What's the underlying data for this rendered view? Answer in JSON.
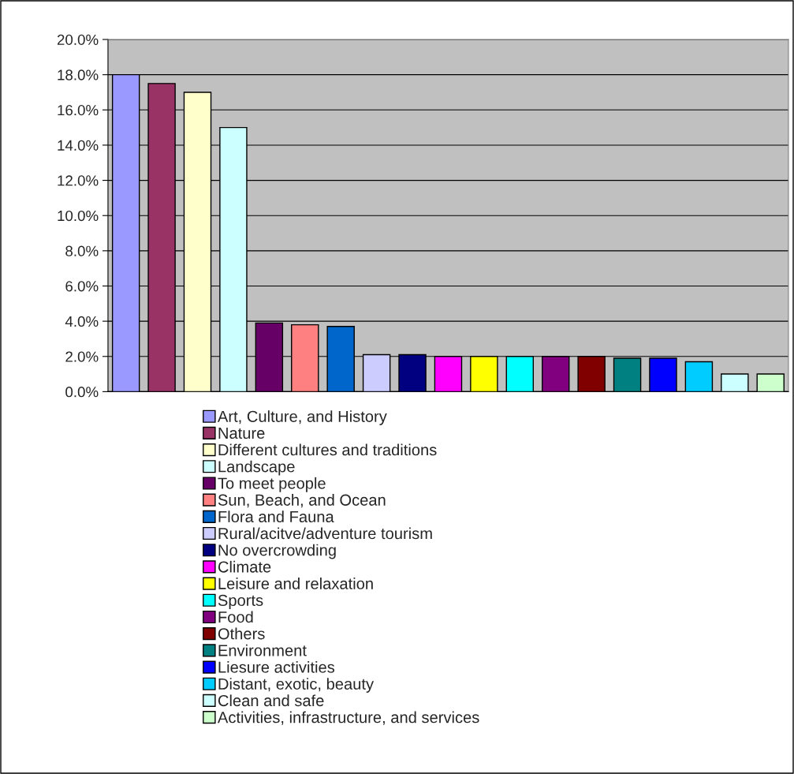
{
  "chart_data": {
    "type": "bar",
    "categories": [
      null
    ],
    "series": [
      {
        "name": "Art, Culture, and History",
        "color": "#9999ff",
        "values": [
          18.0
        ]
      },
      {
        "name": "Nature",
        "color": "#993366",
        "values": [
          17.5
        ]
      },
      {
        "name": "Different cultures and traditions",
        "color": "#ffffcc",
        "values": [
          17.0
        ]
      },
      {
        "name": "Landscape",
        "color": "#ccffff",
        "values": [
          15.0
        ]
      },
      {
        "name": "To meet people",
        "color": "#660066",
        "values": [
          3.9
        ]
      },
      {
        "name": "Sun, Beach, and Ocean",
        "color": "#ff8080",
        "values": [
          3.8
        ]
      },
      {
        "name": "Flora and Fauna",
        "color": "#0066cc",
        "values": [
          3.7
        ]
      },
      {
        "name": "Rural/acitve/adventure tourism",
        "color": "#ccccff",
        "values": [
          2.1
        ]
      },
      {
        "name": "No overcrowding",
        "color": "#000080",
        "values": [
          2.1
        ]
      },
      {
        "name": "Climate",
        "color": "#ff00ff",
        "values": [
          2.0
        ]
      },
      {
        "name": "Leisure and relaxation",
        "color": "#ffff00",
        "values": [
          2.0
        ]
      },
      {
        "name": "Sports",
        "color": "#00ffff",
        "values": [
          2.0
        ]
      },
      {
        "name": "Food",
        "color": "#800080",
        "values": [
          2.0
        ]
      },
      {
        "name": "Others",
        "color": "#800000",
        "values": [
          2.0
        ]
      },
      {
        "name": "Environment",
        "color": "#008080",
        "values": [
          1.9
        ]
      },
      {
        "name": "Liesure activities",
        "color": "#0000ff",
        "values": [
          1.9
        ]
      },
      {
        "name": "Distant, exotic, beauty",
        "color": "#00ccff",
        "values": [
          1.7
        ]
      },
      {
        "name": "Clean and safe",
        "color": "#ccffff",
        "values": [
          1.0
        ]
      },
      {
        "name": "Activities, infrastructure, and services",
        "color": "#ccffcc",
        "values": [
          1.0
        ]
      }
    ],
    "ylim": [
      0,
      20
    ],
    "yticks": [
      {
        "value": 0,
        "label": "0.0%"
      },
      {
        "value": 2,
        "label": "2.0%"
      },
      {
        "value": 4,
        "label": "4.0%"
      },
      {
        "value": 6,
        "label": "6.0%"
      },
      {
        "value": 8,
        "label": "8.0%"
      },
      {
        "value": 10,
        "label": "10.0%"
      },
      {
        "value": 12,
        "label": "12.0%"
      },
      {
        "value": 14,
        "label": "14.0%"
      },
      {
        "value": 16,
        "label": "16.0%"
      },
      {
        "value": 18,
        "label": "18.0%"
      },
      {
        "value": 20,
        "label": "20.0%"
      }
    ],
    "grid": "y",
    "legend": "bottom"
  }
}
